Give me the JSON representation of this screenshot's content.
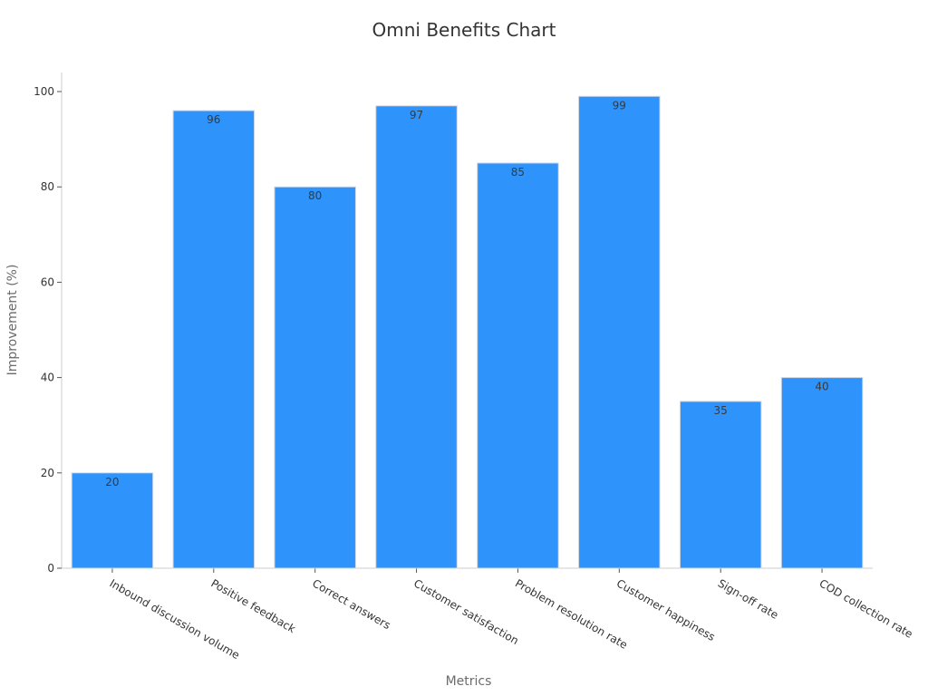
{
  "chart_data": {
    "type": "bar",
    "title": "Omni Benefits Chart",
    "xlabel": "Metrics",
    "ylabel": "Improvement (%)",
    "categories": [
      "Inbound discussion volume",
      "Positive feedback",
      "Correct answers",
      "Customer satisfaction",
      "Problem resolution rate",
      "Customer happiness",
      "Sign-off rate",
      "COD collection rate"
    ],
    "values": [
      20,
      96,
      80,
      97,
      85,
      99,
      35,
      40
    ],
    "ylim": [
      0,
      104
    ],
    "yticks": [
      0,
      20,
      40,
      60,
      80,
      100
    ],
    "grid": false,
    "data_labels": true,
    "bar_color": "#2e93fa",
    "bar_edge_color": "#d0d8e2"
  }
}
